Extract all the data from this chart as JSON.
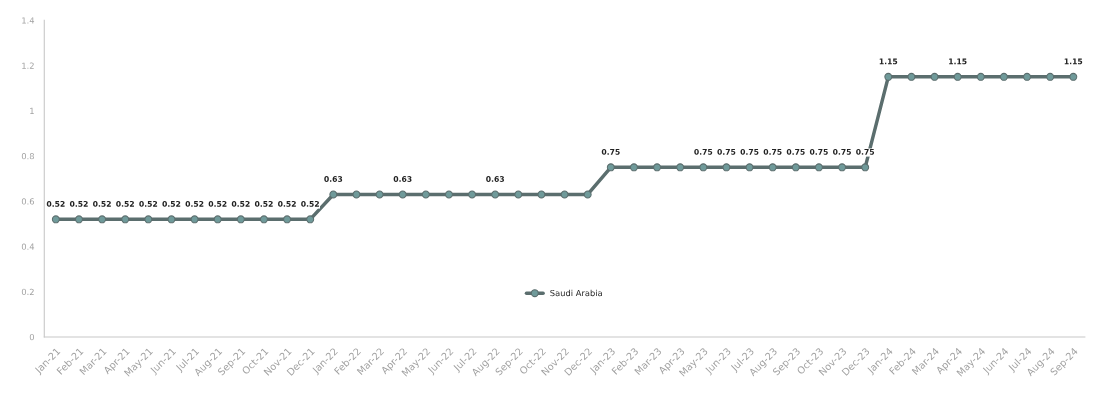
{
  "chart_data": {
    "type": "line",
    "categories": [
      "Jan-21",
      "Feb-21",
      "Mar-21",
      "Apr-21",
      "May-21",
      "Jun-21",
      "Jul-21",
      "Aug-21",
      "Sep-21",
      "Oct-21",
      "Nov-21",
      "Dec-21",
      "Jan-22",
      "Feb-22",
      "Mar-22",
      "Apr-22",
      "May-22",
      "Jun-22",
      "Jul-22",
      "Aug-22",
      "Sep-22",
      "Oct-22",
      "Nov-22",
      "Dec-22",
      "Jan-23",
      "Feb-23",
      "Mar-23",
      "Apr-23",
      "May-23",
      "Jun-23",
      "Jul-23",
      "Aug-23",
      "Sep-23",
      "Oct-23",
      "Nov-23",
      "Dec-23",
      "Jan-24",
      "Feb-24",
      "Mar-24",
      "Apr-24",
      "May-24",
      "Jun-24",
      "Jul-24",
      "Aug-24",
      "Sep-24"
    ],
    "series": [
      {
        "name": "Saudi Arabia",
        "color": "#5b6e6e",
        "values": [
          0.52,
          0.52,
          0.52,
          0.52,
          0.52,
          0.52,
          0.52,
          0.52,
          0.52,
          0.52,
          0.52,
          0.52,
          0.63,
          0.63,
          0.63,
          0.63,
          0.63,
          0.63,
          0.63,
          0.63,
          0.63,
          0.63,
          0.63,
          0.63,
          0.75,
          0.75,
          0.75,
          0.75,
          0.75,
          0.75,
          0.75,
          0.75,
          0.75,
          0.75,
          0.75,
          0.75,
          1.15,
          1.15,
          1.15,
          1.15,
          1.15,
          1.15,
          1.15,
          1.15,
          1.15
        ],
        "value_labels": [
          "0.52",
          "0.52",
          "0.52",
          "0.52",
          "0.52",
          "0.52",
          "0.52",
          "0.52",
          "0.52",
          "0.52",
          "0.52",
          "0.52",
          "0.63",
          null,
          null,
          "0.63",
          null,
          null,
          null,
          "0.63",
          null,
          null,
          null,
          null,
          "0.75",
          null,
          null,
          null,
          "0.75",
          "0.75",
          "0.75",
          "0.75",
          "0.75",
          "0.75",
          "0.75",
          "0.75",
          "1.15",
          null,
          null,
          "1.15",
          null,
          null,
          null,
          null,
          "1.15"
        ]
      }
    ],
    "ylim": [
      0,
      1.4
    ],
    "yticks": [
      0,
      0.2,
      0.4,
      0.6,
      0.8,
      1,
      1.2,
      1.4
    ],
    "grid": false,
    "legend": "bottom",
    "marker": "circle",
    "line_style": "solid"
  }
}
